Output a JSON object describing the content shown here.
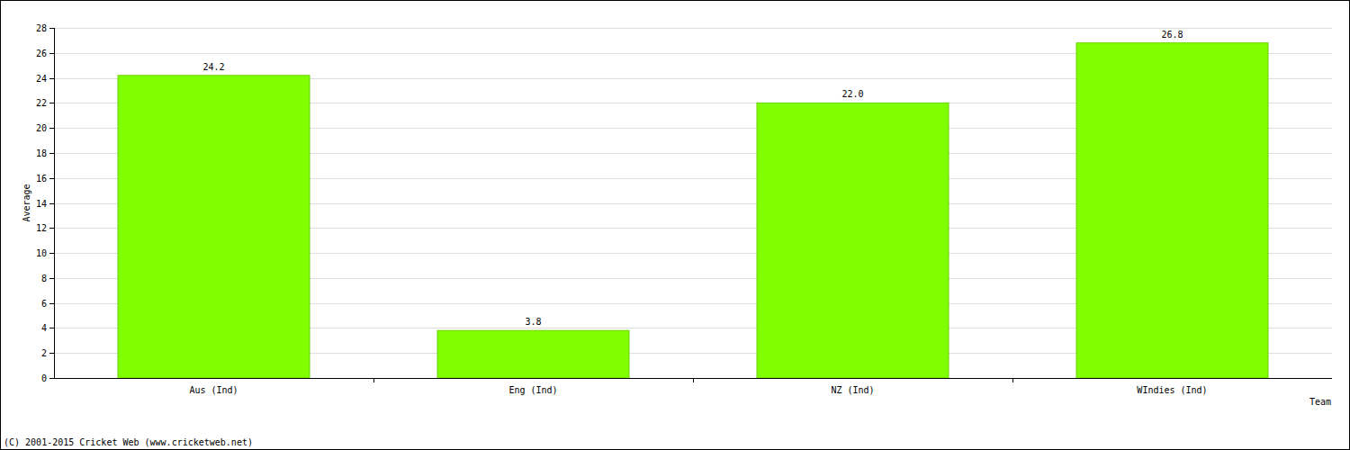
{
  "chart_data": {
    "type": "bar",
    "x_label": "Team",
    "y_label": "Average",
    "annotations": [
      "(C) 2001-2015 Cricket Web (www.cricketweb.net)"
    ],
    "categories": [
      "Aus (Ind)",
      "Eng (Ind)",
      "NZ (Ind)",
      "WIndies (Ind)"
    ],
    "values": [
      24.2,
      3.8,
      22.0,
      26.8
    ],
    "value_labels": [
      "24.2",
      "3.8",
      "22.0",
      "26.8"
    ],
    "color": "#80ff00",
    "ylim": [
      0,
      28
    ],
    "yticks": [
      0,
      2,
      4,
      6,
      8,
      10,
      12,
      14,
      16,
      18,
      20,
      22,
      24,
      26,
      28
    ],
    "grid": true,
    "data_labels": true
  }
}
